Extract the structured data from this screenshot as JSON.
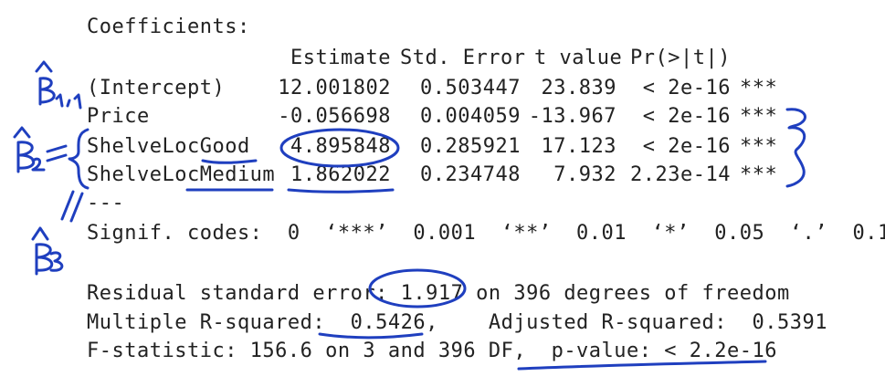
{
  "output": {
    "coef_heading": "Coefficients:",
    "columns": [
      "Estimate",
      "Std. Error",
      "t value",
      "Pr(>|t|)"
    ],
    "rows": [
      {
        "term": "(Intercept)",
        "estimate": "12.001802",
        "std_error": "0.503447",
        "t_value": "23.839",
        "p_value": "< 2e-16",
        "signif": "***"
      },
      {
        "term": "Price",
        "estimate": "-0.056698",
        "std_error": "0.004059",
        "t_value": "-13.967",
        "p_value": "< 2e-16",
        "signif": "***"
      },
      {
        "term": "ShelveLocGood",
        "estimate": "4.895848",
        "std_error": "0.285921",
        "t_value": "17.123",
        "p_value": "< 2e-16",
        "signif": "***"
      },
      {
        "term": "ShelveLocMedium",
        "estimate": "1.862022",
        "std_error": "0.234748",
        "t_value": "7.932",
        "p_value": "2.23e-14",
        "signif": "***"
      }
    ],
    "separator": "---",
    "signif_codes": "Signif. codes:  0  ‘***’  0.001  ‘**’  0.01  ‘*’  0.05  ‘.’  0.1",
    "residual_line": "Residual standard error: 1.917 on 396 degrees of freedom",
    "rsquared_line": "Multiple R-squared:  0.5426,    Adjusted R-squared:  0.5391",
    "fstat_line": "F-statistic: 156.6 on 3 and 396 DF,  p-value: < 2.2e-16"
  },
  "annotations": {
    "beta_labels": [
      "β1,1",
      "β2",
      "β3"
    ],
    "ink_color": "#1f3fbf"
  }
}
